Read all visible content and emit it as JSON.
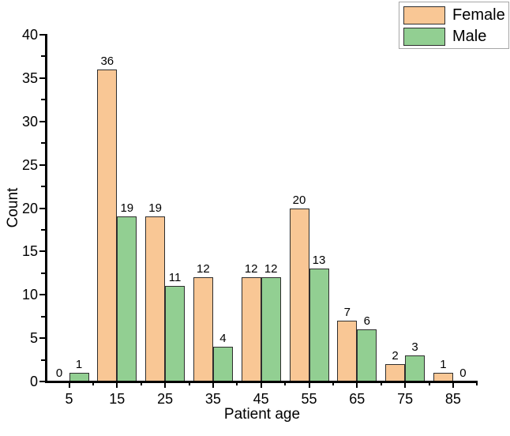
{
  "chart_data": {
    "type": "bar",
    "title": "",
    "xlabel": "Patient age",
    "ylabel": "Count",
    "categories": [
      5,
      15,
      25,
      35,
      45,
      55,
      65,
      75,
      85
    ],
    "series": [
      {
        "name": "Female",
        "color": "#f9c795",
        "values": [
          0,
          36,
          19,
          12,
          12,
          20,
          7,
          2,
          1
        ]
      },
      {
        "name": "Male",
        "color": "#92cf92",
        "values": [
          1,
          19,
          11,
          4,
          12,
          13,
          6,
          3,
          0
        ]
      }
    ],
    "ylim": [
      0,
      40
    ],
    "y_major_step": 5,
    "y_minor_step": 2.5,
    "x_minor_between_groups": true,
    "bar_value_labels": true,
    "grid": false,
    "legend_position": "top-right",
    "colors": {
      "axis": "#000000",
      "bar_border": "#2e2e2e",
      "legend_border": "#a6a6a6",
      "text": "#000000",
      "background": "#ffffff"
    }
  }
}
